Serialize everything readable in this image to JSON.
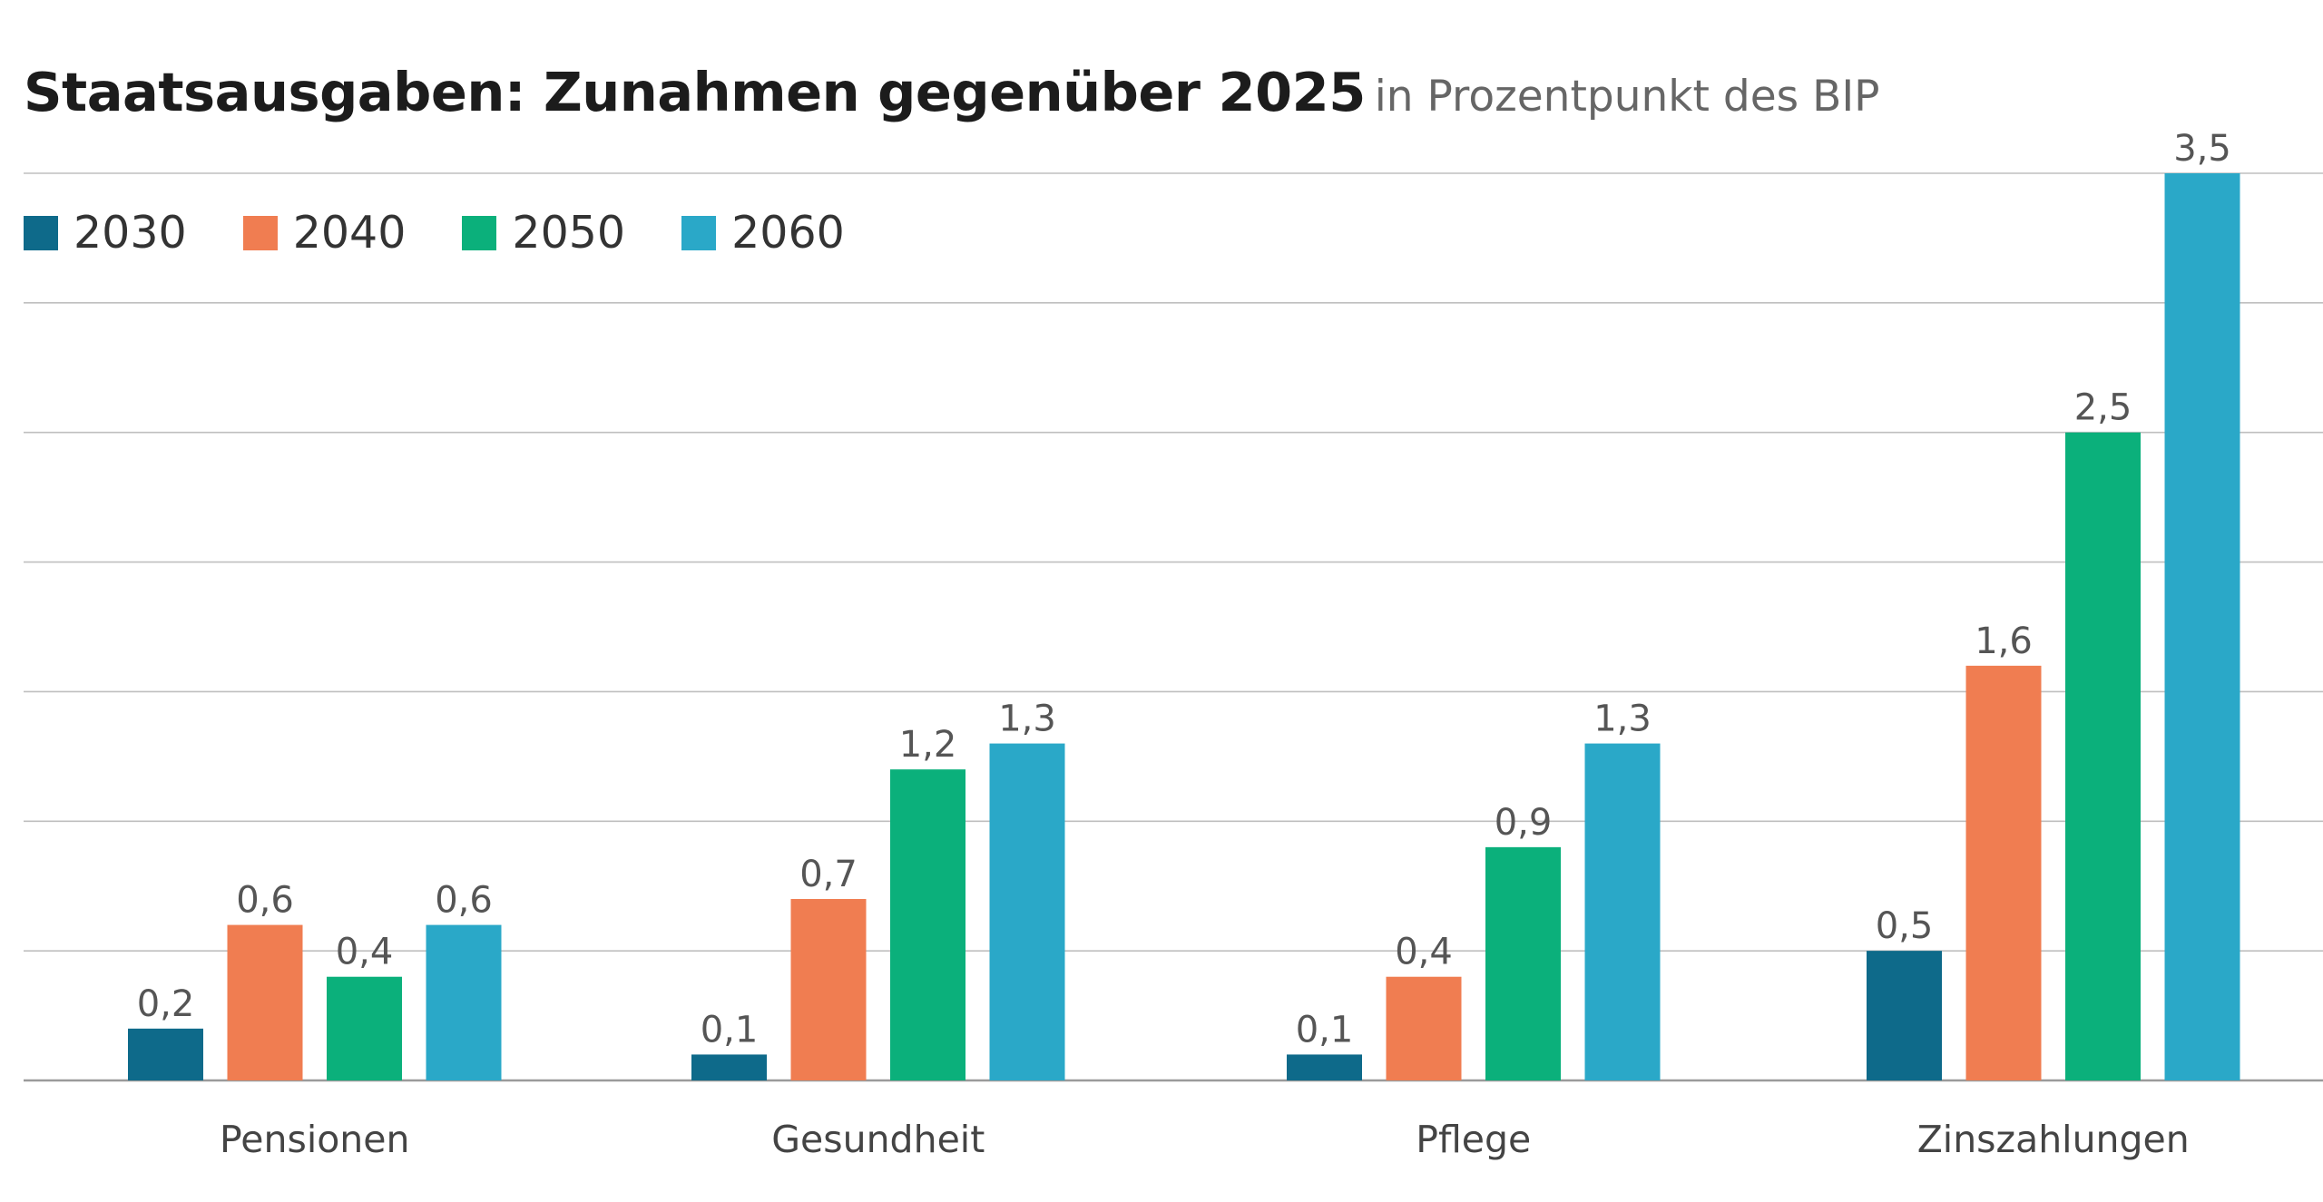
{
  "chart_data": {
    "type": "bar",
    "title": "Staatsausgaben: Zunahmen gegenüber 2025",
    "subtitle": "in Prozentpunkt des BIP",
    "categories": [
      "Pensionen",
      "Gesundheit",
      "Pflege",
      "Zinszahlungen"
    ],
    "series": [
      {
        "name": "2030",
        "color": "#0e6a8a",
        "values": [
          0.2,
          0.1,
          0.1,
          0.5
        ],
        "labels": [
          "0,2",
          "0,1",
          "0,1",
          "0,5"
        ]
      },
      {
        "name": "2040",
        "color": "#f07d51",
        "values": [
          0.6,
          0.7,
          0.4,
          1.6
        ],
        "labels": [
          "0,6",
          "0,7",
          "0,4",
          "1,6"
        ]
      },
      {
        "name": "2050",
        "color": "#0bb07b",
        "values": [
          0.4,
          1.2,
          0.9,
          2.5
        ],
        "labels": [
          "0,4",
          "1,2",
          "0,9",
          "2,5"
        ]
      },
      {
        "name": "2060",
        "color": "#2aa8c8",
        "values": [
          0.6,
          1.3,
          1.3,
          3.5
        ],
        "labels": [
          "0,6",
          "1,3",
          "1,3",
          "3,5"
        ]
      }
    ],
    "ylim": [
      0,
      3.5
    ],
    "grid": true,
    "legend_position": "top-left"
  }
}
